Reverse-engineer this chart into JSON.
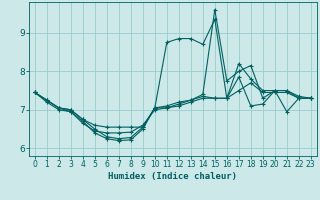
{
  "xlabel": "Humidex (Indice chaleur)",
  "background_color": "#cce8e8",
  "grid_color": "#99cccc",
  "line_color": "#006060",
  "xlim": [
    -0.5,
    23.5
  ],
  "ylim": [
    5.8,
    9.8
  ],
  "yticks": [
    6,
    7,
    8,
    9
  ],
  "xticks": [
    0,
    1,
    2,
    3,
    4,
    5,
    6,
    7,
    8,
    9,
    10,
    11,
    12,
    13,
    14,
    15,
    16,
    17,
    18,
    19,
    20,
    21,
    22,
    23
  ],
  "series": [
    {
      "x": [
        0,
        1,
        2,
        3,
        4,
        5,
        6,
        7,
        8,
        9,
        10,
        11,
        12,
        13,
        14,
        15,
        16,
        17,
        18,
        19,
        20,
        21,
        22,
        23
      ],
      "y": [
        7.45,
        7.25,
        7.05,
        6.95,
        6.7,
        6.4,
        6.25,
        6.2,
        6.22,
        6.5,
        7.05,
        8.75,
        8.85,
        8.85,
        8.7,
        9.35,
        7.3,
        7.85,
        7.1,
        7.15,
        7.5,
        7.5,
        7.3,
        7.3
      ]
    },
    {
      "x": [
        0,
        1,
        2,
        3,
        4,
        5,
        6,
        7,
        8,
        9,
        10,
        11,
        12,
        13,
        14,
        15,
        16,
        17,
        18,
        19,
        20,
        21,
        22,
        23
      ],
      "y": [
        7.45,
        7.25,
        7.05,
        7.0,
        6.75,
        6.5,
        6.3,
        6.25,
        6.28,
        6.55,
        7.05,
        7.05,
        7.15,
        7.25,
        7.4,
        9.6,
        7.75,
        8.0,
        8.15,
        7.3,
        7.5,
        6.95,
        7.3,
        7.3
      ]
    },
    {
      "x": [
        0,
        1,
        2,
        3,
        4,
        5,
        6,
        7,
        8,
        9,
        10,
        11,
        12,
        13,
        14,
        15,
        16,
        17,
        18,
        19,
        20,
        21,
        22,
        23
      ],
      "y": [
        7.45,
        7.25,
        7.05,
        7.0,
        6.75,
        6.6,
        6.55,
        6.55,
        6.55,
        6.55,
        7.05,
        7.1,
        7.2,
        7.25,
        7.35,
        7.3,
        7.3,
        8.2,
        7.8,
        7.5,
        7.5,
        7.5,
        7.35,
        7.3
      ]
    },
    {
      "x": [
        0,
        1,
        2,
        3,
        4,
        5,
        6,
        7,
        8,
        9,
        10,
        11,
        12,
        13,
        14,
        15,
        16,
        17,
        18,
        19,
        20,
        21,
        22,
        23
      ],
      "y": [
        7.45,
        7.2,
        7.0,
        6.95,
        6.65,
        6.45,
        6.4,
        6.4,
        6.42,
        6.6,
        7.0,
        7.05,
        7.1,
        7.2,
        7.3,
        7.3,
        7.3,
        7.5,
        7.7,
        7.45,
        7.45,
        7.45,
        7.3,
        7.3
      ]
    }
  ]
}
